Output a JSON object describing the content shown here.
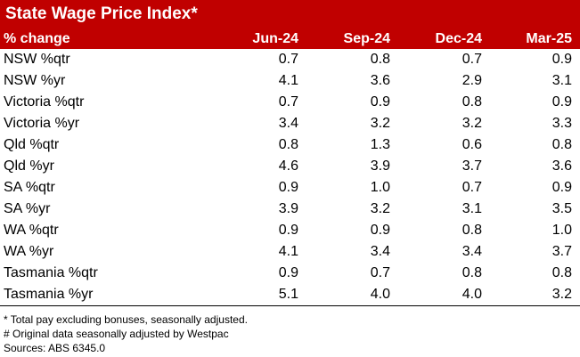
{
  "title": "State Wage Price Index*",
  "header": {
    "label": "% change",
    "columns": [
      "Jun-24",
      "Sep-24",
      "Dec-24",
      "Mar-25"
    ]
  },
  "rows": [
    {
      "label": "NSW %qtr",
      "values": [
        "0.7",
        "0.8",
        "0.7",
        "0.9"
      ]
    },
    {
      "label": "NSW %yr",
      "values": [
        "4.1",
        "3.6",
        "2.9",
        "3.1"
      ]
    },
    {
      "label": "Victoria %qtr",
      "values": [
        "0.7",
        "0.9",
        "0.8",
        "0.9"
      ]
    },
    {
      "label": "Victoria %yr",
      "values": [
        "3.4",
        "3.2",
        "3.2",
        "3.3"
      ]
    },
    {
      "label": "Qld %qtr",
      "values": [
        "0.8",
        "1.3",
        "0.6",
        "0.8"
      ]
    },
    {
      "label": "Qld %yr",
      "values": [
        "4.6",
        "3.9",
        "3.7",
        "3.6"
      ]
    },
    {
      "label": "SA %qtr",
      "values": [
        "0.9",
        "1.0",
        "0.7",
        "0.9"
      ]
    },
    {
      "label": "SA %yr",
      "values": [
        "3.9",
        "3.2",
        "3.1",
        "3.5"
      ]
    },
    {
      "label": "WA %qtr",
      "values": [
        "0.9",
        "0.9",
        "0.8",
        "1.0"
      ]
    },
    {
      "label": "WA %yr",
      "values": [
        "4.1",
        "3.4",
        "3.4",
        "3.7"
      ]
    },
    {
      "label": "Tasmania %qtr",
      "values": [
        "0.9",
        "0.7",
        "0.8",
        "0.8"
      ]
    },
    {
      "label": "Tasmania %yr",
      "values": [
        "5.1",
        "4.0",
        "4.0",
        "3.2"
      ]
    }
  ],
  "footnotes": [
    "* Total pay excluding bonuses, seasonally adjusted.",
    "# Original data seasonally adjusted by Westpac",
    "Sources: ABS 6345.0"
  ],
  "colors": {
    "header_bg": "#c00000",
    "header_text": "#ffffff"
  }
}
